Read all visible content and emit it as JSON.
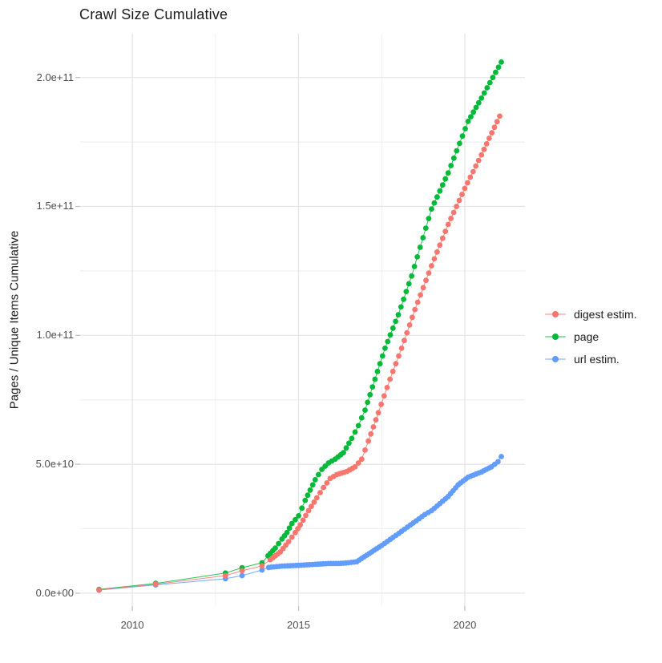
{
  "chart_data": {
    "type": "scatter",
    "title": "Crawl Size Cumulative",
    "xlabel": "",
    "ylabel": "Pages / Unique Items Cumulative",
    "x_ticks": [
      2010,
      2015,
      2020
    ],
    "x_tick_labels": [
      "2010",
      "2015",
      "2020"
    ],
    "y_ticks": [
      0,
      50000000000.0,
      100000000000.0,
      150000000000.0,
      200000000000.0
    ],
    "y_tick_labels": [
      "0.0e+00",
      "5.0e+10",
      "1.0e+11",
      "1.5e+11",
      "2.0e+11"
    ],
    "xlim": [
      2008.43,
      2021.81
    ],
    "ylim": [
      -5000000000.0,
      217000000000.0
    ],
    "grid": true,
    "legend_position": "right",
    "point_shape": "filled-circle",
    "dense_monthly_from": 2013.95,
    "colors": {
      "digest": "#F8766D",
      "page": "#00BA38",
      "url": "#619CFF",
      "grid_major": "#E4E4E4",
      "grid_minor": "#F0F0F0",
      "tick_mark": "#BEBEBE"
    },
    "series": [
      {
        "name": "digest estim.",
        "color": "#F8766D",
        "points": [
          [
            2009.0,
            1300000000.0
          ],
          [
            2010.7,
            3500000000.0
          ],
          [
            2012.8,
            6800000000.0
          ],
          [
            2013.3,
            8700000000.0
          ],
          [
            2013.9,
            10600000000.0
          ],
          [
            2014.15,
            13000000000.0
          ],
          [
            2014.45,
            16000000000.0
          ],
          [
            2014.7,
            20000000000.0
          ],
          [
            2014.9,
            23500000000.0
          ],
          [
            2015.05,
            26500000000.0
          ],
          [
            2015.3,
            32000000000.0
          ],
          [
            2015.55,
            37000000000.0
          ],
          [
            2015.75,
            41000000000.0
          ],
          [
            2015.95,
            44500000000.0
          ],
          [
            2016.15,
            46000000000.0
          ],
          [
            2016.45,
            47200000000.0
          ],
          [
            2016.7,
            49000000000.0
          ],
          [
            2016.9,
            52000000000.0
          ],
          [
            2017.1,
            59000000000.0
          ],
          [
            2017.4,
            70000000000.0
          ],
          [
            2017.75,
            83000000000.0
          ],
          [
            2018.1,
            95000000000.0
          ],
          [
            2018.5,
            110000000000.0
          ],
          [
            2019.0,
            127000000000.0
          ],
          [
            2019.5,
            143000000000.0
          ],
          [
            2020.0,
            157000000000.0
          ],
          [
            2020.5,
            170000000000.0
          ],
          [
            2021.05,
            185000000000.0
          ]
        ]
      },
      {
        "name": "page",
        "color": "#00BA38",
        "points": [
          [
            2009.0,
            1500000000.0
          ],
          [
            2010.7,
            3800000000.0
          ],
          [
            2012.8,
            7800000000.0
          ],
          [
            2013.3,
            9900000000.0
          ],
          [
            2013.9,
            11800000000.0
          ],
          [
            2014.08,
            14500000000.0
          ],
          [
            2014.3,
            17500000000.0
          ],
          [
            2014.5,
            21000000000.0
          ],
          [
            2014.65,
            23500000000.0
          ],
          [
            2014.8,
            27000000000.0
          ],
          [
            2015.0,
            30000000000.0
          ],
          [
            2015.2,
            36000000000.0
          ],
          [
            2015.5,
            44000000000.0
          ],
          [
            2015.7,
            48000000000.0
          ],
          [
            2015.9,
            50500000000.0
          ],
          [
            2016.1,
            52000000000.0
          ],
          [
            2016.35,
            54500000000.0
          ],
          [
            2016.6,
            60000000000.0
          ],
          [
            2016.8,
            65000000000.0
          ],
          [
            2017.0,
            71000000000.0
          ],
          [
            2017.3,
            83000000000.0
          ],
          [
            2017.6,
            95000000000.0
          ],
          [
            2018.0,
            108000000000.0
          ],
          [
            2018.4,
            123000000000.0
          ],
          [
            2019.0,
            149000000000.0
          ],
          [
            2019.5,
            163000000000.0
          ],
          [
            2020.1,
            183000000000.0
          ],
          [
            2020.5,
            192000000000.0
          ],
          [
            2021.1,
            206000000000.0
          ]
        ]
      },
      {
        "name": "url estim.",
        "color": "#619CFF",
        "points": [
          [
            2009.0,
            1200000000.0
          ],
          [
            2010.7,
            3200000000.0
          ],
          [
            2012.8,
            5600000000.0
          ],
          [
            2013.3,
            6800000000.0
          ],
          [
            2013.9,
            9000000000.0
          ],
          [
            2014.1,
            10000000000.0
          ],
          [
            2014.5,
            10500000000.0
          ],
          [
            2015.0,
            10800000000.0
          ],
          [
            2015.5,
            11200000000.0
          ],
          [
            2015.9,
            11500000000.0
          ],
          [
            2016.2,
            11500000000.0
          ],
          [
            2016.5,
            11800000000.0
          ],
          [
            2016.75,
            12200000000.0
          ],
          [
            2016.9,
            13500000000.0
          ],
          [
            2017.2,
            16000000000.0
          ],
          [
            2017.5,
            18500000000.0
          ],
          [
            2018.1,
            24000000000.0
          ],
          [
            2018.8,
            30500000000.0
          ],
          [
            2019.0,
            32000000000.0
          ],
          [
            2019.5,
            37500000000.0
          ],
          [
            2019.8,
            42000000000.0
          ],
          [
            2020.1,
            45000000000.0
          ],
          [
            2020.5,
            47000000000.0
          ],
          [
            2020.8,
            49000000000.0
          ],
          [
            2021.0,
            51000000000.0
          ],
          [
            2021.1,
            53000000000.0
          ]
        ]
      }
    ],
    "legend": [
      "digest estim.",
      "page",
      "url estim."
    ]
  }
}
